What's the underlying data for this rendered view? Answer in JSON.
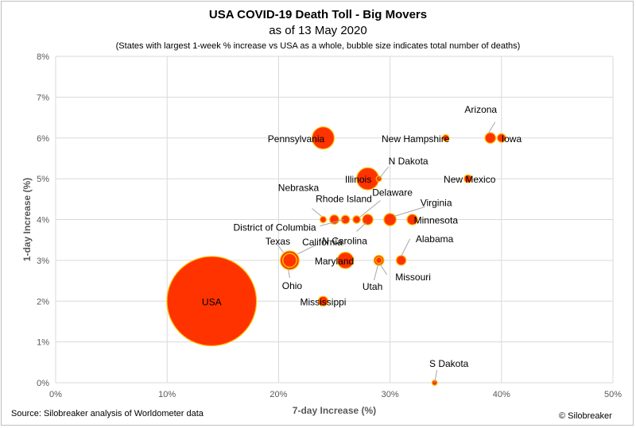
{
  "header": {
    "title": "USA COVID-19 Death Toll - Big Movers",
    "subtitle": "as of 13 May 2020",
    "note": "(States with largest 1-week % increase vs USA as a whole, bubble size indicates total number of deaths)"
  },
  "footer": {
    "source": "Source: Silobreaker analysis of Worldometer data",
    "copyright": "© Silobreaker"
  },
  "colors": {
    "bubble_fill": "#ff3300",
    "bubble_edge": "#ffc000",
    "leader": "#a6a6a6",
    "grid": "#d9d9d9"
  },
  "chart_data": {
    "type": "scatter",
    "title": "USA COVID-19 Death Toll - Big Movers",
    "subtitle": "as of 13 May 2020",
    "xlabel": "7-day Increase (%)",
    "ylabel": "1-day Increase (%)",
    "xlim": [
      0,
      50
    ],
    "ylim": [
      0,
      8
    ],
    "xticks": [
      "0%",
      "10%",
      "20%",
      "30%",
      "40%",
      "50%"
    ],
    "yticks": [
      "0%",
      "1%",
      "2%",
      "3%",
      "4%",
      "5%",
      "6%",
      "7%",
      "8%"
    ],
    "grid": true,
    "points": [
      {
        "name": "USA",
        "x": 14,
        "y": 2,
        "size": 84000
      },
      {
        "name": "Pennsylvania",
        "x": 24,
        "y": 6,
        "size": 4000
      },
      {
        "name": "Illinois",
        "x": 28,
        "y": 5,
        "size": 4000
      },
      {
        "name": "Arizona",
        "x": 39,
        "y": 6,
        "size": 600
      },
      {
        "name": "Iowa",
        "x": 40,
        "y": 6,
        "size": 300
      },
      {
        "name": "New Hampshire",
        "x": 35,
        "y": 6,
        "size": 120
      },
      {
        "name": "New Mexico",
        "x": 37,
        "y": 5,
        "size": 230
      },
      {
        "name": "N Dakota",
        "x": 29,
        "y": 5,
        "size": 50
      },
      {
        "name": "Nebraska",
        "x": 24,
        "y": 4,
        "size": 100
      },
      {
        "name": "Rhode Island",
        "x": 25,
        "y": 4,
        "size": 400
      },
      {
        "name": "District of Columbia",
        "x": 26,
        "y": 4,
        "size": 300
      },
      {
        "name": "Delaware",
        "x": 27,
        "y": 4,
        "size": 200
      },
      {
        "name": "N Carolina",
        "x": 28,
        "y": 4,
        "size": 600
      },
      {
        "name": "Virginia",
        "x": 30,
        "y": 4,
        "size": 900
      },
      {
        "name": "Minnesota",
        "x": 32,
        "y": 4,
        "size": 600
      },
      {
        "name": "Texas",
        "x": 21,
        "y": 3,
        "size": 1200
      },
      {
        "name": "California",
        "x": 21,
        "y": 3,
        "size": 2700
      },
      {
        "name": "Ohio",
        "x": 21,
        "y": 3,
        "size": 1300
      },
      {
        "name": "Maryland",
        "x": 26,
        "y": 3,
        "size": 1900
      },
      {
        "name": "Utah",
        "x": 29,
        "y": 3,
        "size": 100
      },
      {
        "name": "Missouri",
        "x": 29,
        "y": 3,
        "size": 500
      },
      {
        "name": "Alabama",
        "x": 31,
        "y": 3,
        "size": 450
      },
      {
        "name": "Mississippi",
        "x": 24,
        "y": 2,
        "size": 450
      },
      {
        "name": "S Dakota",
        "x": 34,
        "y": 0,
        "size": 40
      }
    ]
  }
}
